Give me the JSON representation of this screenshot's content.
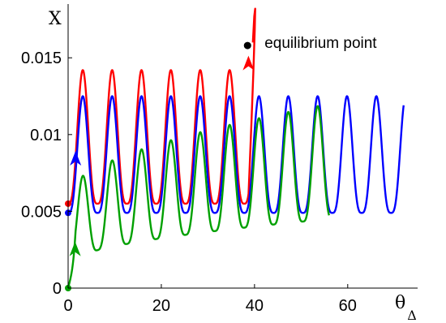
{
  "chart_data": {
    "type": "line",
    "xlabel": "θ",
    "xlabel_sub": "Δ",
    "ylabel": "X",
    "xlim": [
      0,
      75
    ],
    "ylim": [
      0,
      0.0185
    ],
    "xticks": [
      0,
      20,
      40,
      60
    ],
    "xtick_labels": [
      "0",
      "20",
      "40",
      "60"
    ],
    "yticks": [
      0,
      0.005,
      0.01,
      0.015
    ],
    "ytick_labels": [
      "0",
      "0.005",
      "0.01",
      "0.015"
    ],
    "grid": false,
    "annotation": {
      "text": "equilibrium point",
      "x": 38.5,
      "y": 0.0158
    },
    "series": [
      {
        "color": "#ff0000",
        "start": {
          "x": 0,
          "y": 0.0055
        },
        "period": 6.3,
        "cycles": 6.15,
        "peak": 0.0142,
        "trough": 0.0055,
        "arrow_at": {
          "x": 38.7,
          "y": 0.0145
        },
        "end": {
          "x": 38.5,
          "y": 0.0158
        }
      },
      {
        "color": "#0000ff",
        "start": {
          "x": 0,
          "y": 0.0049
        },
        "period": 6.3,
        "peak": 0.0125,
        "trough": 0.0049,
        "x_end": 72,
        "arrow_at": {
          "x": 1.6,
          "y": 0.0083
        }
      },
      {
        "color": "#00a000",
        "start": {
          "x": 0,
          "y": 0
        },
        "period": 6.3,
        "x_end": 56,
        "peak_start": 0.0061,
        "trough_start": 0.0016,
        "peak_end": 0.012,
        "trough_end": 0.0045,
        "arrow_at": {
          "x": 1.5,
          "y": 0.0024
        }
      }
    ]
  }
}
